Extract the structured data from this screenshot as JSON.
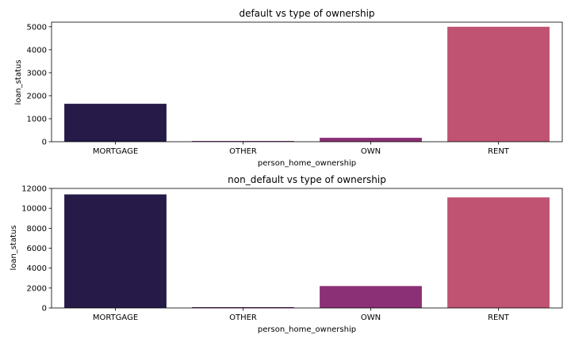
{
  "chart_data": [
    {
      "type": "bar",
      "title": "default vs type of ownership",
      "xlabel": "person_home_ownership",
      "ylabel": "loan_status",
      "categories": [
        "MORTGAGE",
        "OTHER",
        "OWN",
        "RENT"
      ],
      "values": [
        1650,
        30,
        170,
        5000
      ],
      "ylim": [
        0,
        5200
      ],
      "yticks": [
        0,
        1000,
        2000,
        3000,
        4000,
        5000
      ],
      "colors": [
        "#251a48",
        "#5e1f66",
        "#8b3076",
        "#c05372"
      ],
      "grid": false
    },
    {
      "type": "bar",
      "title": "non_default vs type of ownership",
      "xlabel": "person_home_ownership",
      "ylabel": "loan_status",
      "categories": [
        "MORTGAGE",
        "OTHER",
        "OWN",
        "RENT"
      ],
      "values": [
        11400,
        80,
        2200,
        11100
      ],
      "ylim": [
        0,
        12000
      ],
      "yticks": [
        0,
        2000,
        4000,
        6000,
        8000,
        10000,
        12000
      ],
      "colors": [
        "#251a48",
        "#5e1f66",
        "#8b3076",
        "#c05372"
      ],
      "grid": false
    }
  ]
}
